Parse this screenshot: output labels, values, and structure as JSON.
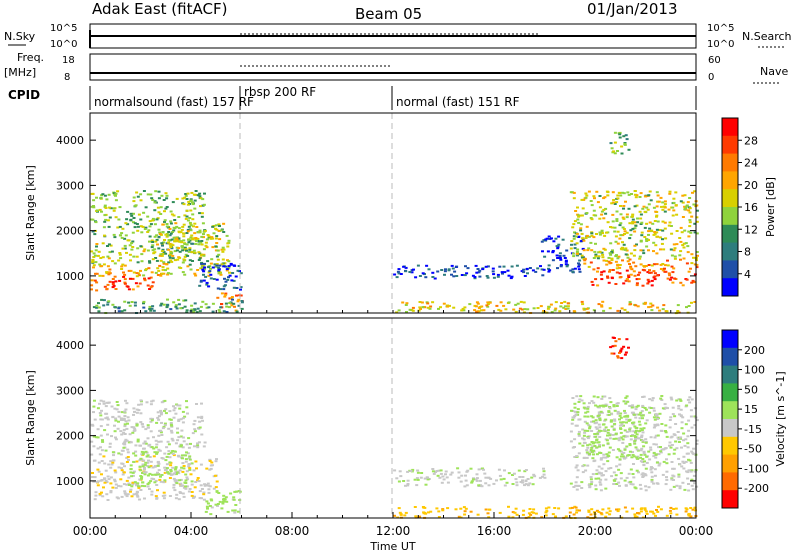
{
  "header": {
    "title": "Adak East (fitACF)",
    "beam": "Beam 05",
    "date": "01/Jan/2013"
  },
  "top_panels": {
    "nsky_label": "N.Sky",
    "nsky_ticks": [
      "10^5",
      "10^0"
    ],
    "nsearch_label": "N.Search",
    "nsearch_ticks": [
      "10^5",
      "10^0"
    ],
    "freq_label": "Freq.",
    "freq_unit": "[MHz]",
    "freq_ticks": [
      "18",
      "8"
    ],
    "nave_label": "Nave",
    "nave_ticks": [
      "60",
      "0"
    ],
    "cpid_label": "CPID",
    "cpid_segments": [
      {
        "label": "normalsound (fast) 157 RF",
        "start_h": 0,
        "end_h": 6
      },
      {
        "label": "rbsp 200 RF",
        "start_h": 6,
        "end_h": 12
      },
      {
        "label": "normal (fast) 151 RF",
        "start_h": 12,
        "end_h": 24
      }
    ]
  },
  "power_colorbar": {
    "label": "Power [dB]",
    "ticks": [
      "28",
      "24",
      "20",
      "16",
      "12",
      "8",
      "4"
    ],
    "colors": [
      "#ff0000",
      "#ff3a00",
      "#ff7a00",
      "#ffa500",
      "#d8d000",
      "#8fd33c",
      "#2e8b57",
      "#2e7d7d",
      "#1f4fa8",
      "#0000ff"
    ]
  },
  "velocity_colorbar": {
    "label": "Velocity [m s^-1]",
    "ticks": [
      "200",
      "100",
      "50",
      "15",
      "-15",
      "-50",
      "-100",
      "-200"
    ],
    "colors": [
      "#0000ff",
      "#1f4fa8",
      "#2e7d7d",
      "#38b043",
      "#9ee35a",
      "#c8c8c8",
      "#ffc800",
      "#ffa000",
      "#ff6a00",
      "#ff0000"
    ]
  },
  "chart_data": [
    {
      "type": "heatmap",
      "panel": "power",
      "ylabel": "Slant Range [km]",
      "ylim": [
        180,
        4600
      ],
      "y_ticks": [
        1000,
        2000,
        3000,
        4000
      ],
      "xlim": [
        0,
        24
      ],
      "regions": [
        {
          "t0": 0.0,
          "t1": 2.6,
          "r0": 700,
          "r1": 1000,
          "level": 28
        },
        {
          "t0": 0.0,
          "t1": 3.0,
          "r0": 1000,
          "r1": 1300,
          "level": 22
        },
        {
          "t0": 0.0,
          "t1": 4.5,
          "r0": 1300,
          "r1": 2900,
          "level": 16
        },
        {
          "t0": 2.5,
          "t1": 5.5,
          "r0": 1000,
          "r1": 2200,
          "level": 18
        },
        {
          "t0": 4.2,
          "t1": 6.0,
          "r0": 700,
          "r1": 1300,
          "level": 6
        },
        {
          "t0": 5.0,
          "t1": 6.0,
          "r0": 250,
          "r1": 650,
          "level": 26
        },
        {
          "t0": 0.0,
          "t1": 6.0,
          "r0": 200,
          "r1": 500,
          "level": 12
        },
        {
          "t0": 12.0,
          "t1": 24.0,
          "r0": 200,
          "r1": 450,
          "level": 20
        },
        {
          "t0": 12.0,
          "t1": 18.0,
          "r0": 950,
          "r1": 1250,
          "level": 6
        },
        {
          "t0": 17.8,
          "t1": 19.5,
          "r0": 1100,
          "r1": 1900,
          "level": 6
        },
        {
          "t0": 19.0,
          "t1": 24.0,
          "r0": 1400,
          "r1": 2900,
          "level": 18
        },
        {
          "t0": 19.8,
          "t1": 24.0,
          "r0": 800,
          "r1": 1150,
          "level": 28
        },
        {
          "t0": 19.5,
          "t1": 24.0,
          "r0": 1150,
          "r1": 1400,
          "level": 24
        },
        {
          "t0": 20.5,
          "t1": 21.3,
          "r0": 3700,
          "r1": 4200,
          "level": 14
        }
      ]
    },
    {
      "type": "heatmap",
      "panel": "velocity",
      "ylabel": "Slant Range [km]",
      "xlabel": "Time UT",
      "ylim": [
        180,
        4600
      ],
      "y_ticks": [
        1000,
        2000,
        3000,
        4000
      ],
      "xlim": [
        0,
        24
      ],
      "x_ticks": [
        "00:00",
        "04:00",
        "08:00",
        "12:00",
        "16:00",
        "20:00",
        "00:00"
      ],
      "regions": [
        {
          "t0": 0.0,
          "t1": 5.0,
          "r0": 600,
          "r1": 1600,
          "level": -5
        },
        {
          "t0": 0.0,
          "t1": 4.5,
          "r0": 1600,
          "r1": 2800,
          "level": 5
        },
        {
          "t0": 1.5,
          "t1": 4.0,
          "r0": 900,
          "r1": 1700,
          "level": 30
        },
        {
          "t0": 4.5,
          "t1": 6.0,
          "r0": 250,
          "r1": 800,
          "level": 30
        },
        {
          "t0": 12.0,
          "t1": 24.0,
          "r0": 200,
          "r1": 450,
          "level": -40
        },
        {
          "t0": 12.0,
          "t1": 18.0,
          "r0": 900,
          "r1": 1300,
          "level": 5
        },
        {
          "t0": 19.0,
          "t1": 24.0,
          "r0": 800,
          "r1": 2900,
          "level": 5
        },
        {
          "t0": 19.5,
          "t1": 22.0,
          "r0": 1500,
          "r1": 2700,
          "level": 30
        },
        {
          "t0": 20.5,
          "t1": 21.3,
          "r0": 3700,
          "r1": 4200,
          "level": -200
        }
      ]
    }
  ]
}
